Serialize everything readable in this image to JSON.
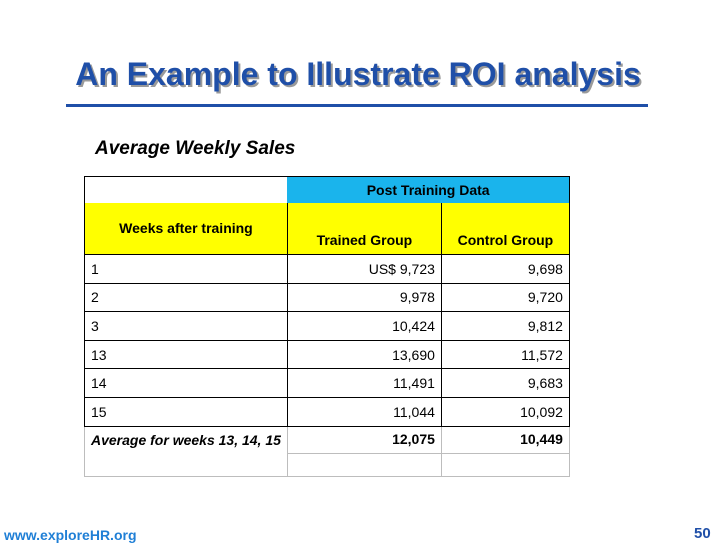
{
  "slide": {
    "title": "An Example to Illustrate ROI analysis",
    "subtitle": "Average Weekly Sales"
  },
  "table": {
    "group_header": "Post Training Data",
    "col_weeks": "Weeks after training",
    "col_trained": "Trained Group",
    "col_control": "Control Group",
    "rows": [
      {
        "week": "1",
        "trained": "US$ 9,723",
        "control": "9,698"
      },
      {
        "week": "2",
        "trained": "9,978",
        "control": "9,720"
      },
      {
        "week": "3",
        "trained": "10,424",
        "control": "9,812"
      },
      {
        "week": "13",
        "trained": "13,690",
        "control": "11,572"
      },
      {
        "week": "14",
        "trained": "11,491",
        "control": "9,683"
      },
      {
        "week": "15",
        "trained": "11,044",
        "control": "10,092"
      }
    ],
    "average": {
      "label": "Average for weeks 13, 14, 15",
      "trained": "12,075",
      "control": "10,449"
    }
  },
  "footer": {
    "website": "www.exploreHR.org",
    "page_number": "50"
  },
  "colors": {
    "title": "#1f4fa8",
    "header_blue": "#1ab4ec",
    "header_yellow": "#ffff00",
    "link": "#1f7fd6"
  }
}
